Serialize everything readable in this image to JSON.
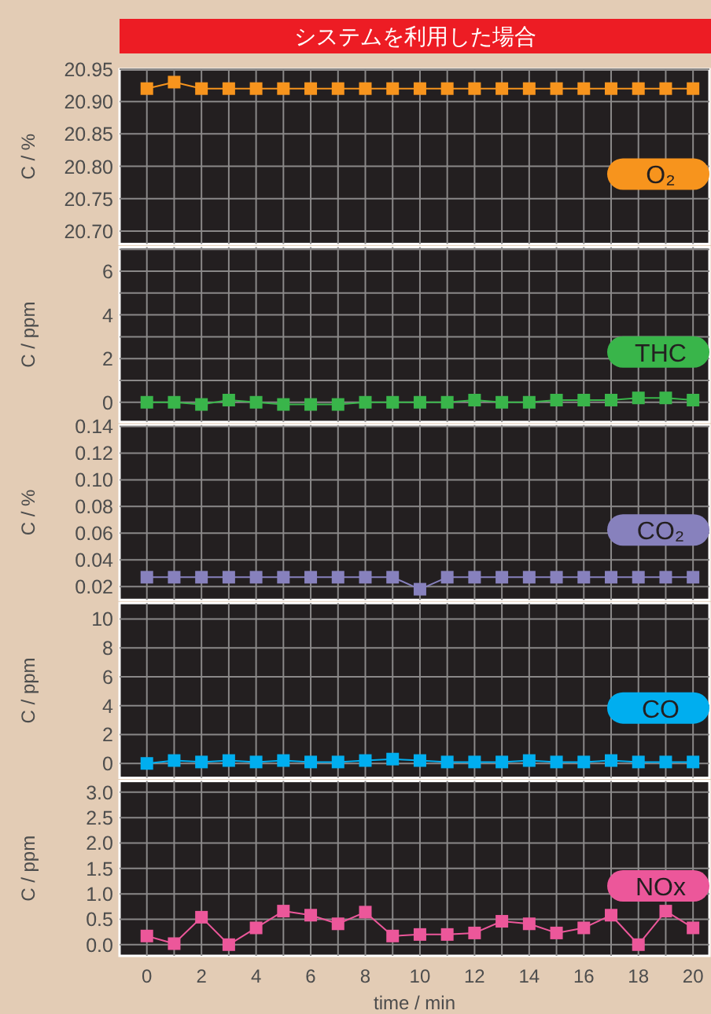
{
  "chart_data": [
    {
      "type": "line",
      "title": "システムを利用した場合",
      "ylabel": "C / %",
      "tick_labels": "y",
      "grid": true,
      "marker": "square",
      "line_style": "solid",
      "x": [
        0,
        1,
        2,
        3,
        4,
        5,
        6,
        7,
        8,
        9,
        10,
        11,
        12,
        13,
        14,
        15,
        16,
        17,
        18,
        19,
        20
      ],
      "xlim": [
        -1,
        20.6
      ],
      "xticks": [
        0,
        {
          "value": 1,
          "label": null
        },
        2,
        {
          "value": 3,
          "label": null
        },
        4,
        {
          "value": 5,
          "label": null
        },
        6,
        {
          "value": 7,
          "label": null
        },
        8,
        {
          "value": 9,
          "label": null
        },
        10,
        {
          "value": 11,
          "label": null
        },
        12,
        {
          "value": 13,
          "label": null
        },
        14,
        {
          "value": 15,
          "label": null
        },
        16,
        {
          "value": 17,
          "label": null
        },
        18,
        {
          "value": 19,
          "label": null
        },
        20
      ],
      "ylim": [
        20.68,
        20.95
      ],
      "yticks": [
        {
          "value": 20.7,
          "label": "20.70"
        },
        20.75,
        {
          "value": 20.8,
          "label": "20.80"
        },
        20.85,
        {
          "value": 20.9,
          "label": "20.90"
        },
        20.95
      ],
      "series": [
        {
          "name": "O₂",
          "color": "#f7941d",
          "values": [
            20.92,
            20.93,
            20.92,
            20.92,
            20.92,
            20.92,
            20.92,
            20.92,
            20.92,
            20.92,
            20.92,
            20.92,
            20.92,
            20.92,
            20.92,
            20.92,
            20.92,
            20.92,
            20.92,
            20.92,
            20.92
          ]
        }
      ]
    },
    {
      "type": "line",
      "ylabel": "C / ppm",
      "tick_labels": "y",
      "grid": true,
      "marker": "square",
      "line_style": "solid",
      "x": [
        0,
        1,
        2,
        3,
        4,
        5,
        6,
        7,
        8,
        9,
        10,
        11,
        12,
        13,
        14,
        15,
        16,
        17,
        18,
        19,
        20
      ],
      "xlim": [
        -1,
        20.6
      ],
      "xticks": [
        0,
        {
          "value": 1,
          "label": null
        },
        2,
        {
          "value": 3,
          "label": null
        },
        4,
        {
          "value": 5,
          "label": null
        },
        6,
        {
          "value": 7,
          "label": null
        },
        8,
        {
          "value": 9,
          "label": null
        },
        10,
        {
          "value": 11,
          "label": null
        },
        12,
        {
          "value": 13,
          "label": null
        },
        14,
        {
          "value": 15,
          "label": null
        },
        16,
        {
          "value": 17,
          "label": null
        },
        18,
        {
          "value": 19,
          "label": null
        },
        20
      ],
      "ylim": [
        -0.9,
        7.1
      ],
      "yticks": [
        0,
        {
          "value": 1,
          "label": null
        },
        2,
        {
          "value": 3,
          "label": null
        },
        4,
        {
          "value": 5,
          "label": null
        },
        6,
        {
          "value": 7,
          "label": null
        }
      ],
      "series": [
        {
          "name": "THC",
          "color": "#39b54a",
          "values": [
            0,
            0,
            -0.1,
            0.1,
            0,
            -0.1,
            -0.1,
            -0.1,
            0,
            0,
            0,
            0,
            0.1,
            0,
            0,
            0.1,
            0.1,
            0.1,
            0.2,
            0.2,
            0.1
          ]
        }
      ]
    },
    {
      "type": "line",
      "ylabel": "C / %",
      "tick_labels": "y",
      "grid": true,
      "marker": "square",
      "line_style": "solid",
      "x": [
        0,
        1,
        2,
        3,
        4,
        5,
        6,
        7,
        8,
        9,
        10,
        11,
        12,
        13,
        14,
        15,
        16,
        17,
        18,
        19,
        20
      ],
      "xlim": [
        -1,
        20.6
      ],
      "xticks": [
        0,
        {
          "value": 1,
          "label": null
        },
        2,
        {
          "value": 3,
          "label": null
        },
        4,
        {
          "value": 5,
          "label": null
        },
        6,
        {
          "value": 7,
          "label": null
        },
        8,
        {
          "value": 9,
          "label": null
        },
        10,
        {
          "value": 11,
          "label": null
        },
        12,
        {
          "value": 13,
          "label": null
        },
        14,
        {
          "value": 15,
          "label": null
        },
        16,
        {
          "value": 17,
          "label": null
        },
        18,
        {
          "value": 19,
          "label": null
        },
        20
      ],
      "ylim": [
        0.01,
        0.141
      ],
      "yticks": [
        0.02,
        0.04,
        0.06,
        0.08,
        {
          "value": 0.1,
          "label": "0.10"
        },
        0.12,
        0.14
      ],
      "series": [
        {
          "name": "CO₂",
          "color": "#8781bd",
          "values": [
            0.027,
            0.027,
            0.027,
            0.027,
            0.027,
            0.027,
            0.027,
            0.027,
            0.027,
            0.027,
            0.018,
            0.027,
            0.027,
            0.027,
            0.027,
            0.027,
            0.027,
            0.027,
            0.027,
            0.027,
            0.027
          ]
        }
      ]
    },
    {
      "type": "line",
      "ylabel": "C / ppm",
      "tick_labels": "y",
      "grid": true,
      "marker": "square",
      "line_style": "solid",
      "x": [
        0,
        1,
        2,
        3,
        4,
        5,
        6,
        7,
        8,
        9,
        10,
        11,
        12,
        13,
        14,
        15,
        16,
        17,
        18,
        19,
        20
      ],
      "xlim": [
        -1,
        20.6
      ],
      "xticks": [
        0,
        {
          "value": 1,
          "label": null
        },
        2,
        {
          "value": 3,
          "label": null
        },
        4,
        {
          "value": 5,
          "label": null
        },
        6,
        {
          "value": 7,
          "label": null
        },
        8,
        {
          "value": 9,
          "label": null
        },
        10,
        {
          "value": 11,
          "label": null
        },
        12,
        {
          "value": 13,
          "label": null
        },
        14,
        {
          "value": 15,
          "label": null
        },
        16,
        {
          "value": 17,
          "label": null
        },
        18,
        {
          "value": 19,
          "label": null
        },
        20
      ],
      "ylim": [
        -1,
        11.1
      ],
      "yticks": [
        0,
        2,
        4,
        6,
        8,
        10
      ],
      "series": [
        {
          "name": "CO",
          "color": "#00aeef",
          "values": [
            0,
            0.2,
            0.1,
            0.2,
            0.1,
            0.2,
            0.1,
            0.1,
            0.2,
            0.3,
            0.2,
            0.1,
            0.1,
            0.1,
            0.2,
            0.1,
            0.1,
            0.2,
            0.1,
            0.1,
            0.1
          ]
        }
      ]
    },
    {
      "type": "line",
      "ylabel": "C / ppm",
      "xlabel": "time / min",
      "grid": true,
      "marker": "square",
      "line_style": "solid",
      "x": [
        0,
        1,
        2,
        3,
        4,
        5,
        6,
        7,
        8,
        9,
        10,
        11,
        12,
        13,
        14,
        15,
        16,
        17,
        18,
        19,
        20
      ],
      "xlim": [
        -1,
        20.6
      ],
      "xticks": [
        0,
        {
          "value": 1,
          "label": null
        },
        2,
        {
          "value": 3,
          "label": null
        },
        4,
        {
          "value": 5,
          "label": null
        },
        6,
        {
          "value": 7,
          "label": null
        },
        8,
        {
          "value": 9,
          "label": null
        },
        10,
        {
          "value": 11,
          "label": null
        },
        12,
        {
          "value": 13,
          "label": null
        },
        14,
        {
          "value": 15,
          "label": null
        },
        16,
        {
          "value": 17,
          "label": null
        },
        18,
        {
          "value": 19,
          "label": null
        },
        20
      ],
      "ylim": [
        -0.22,
        3.22
      ],
      "yticks": [
        {
          "value": 0,
          "label": "0.0"
        },
        0.5,
        {
          "value": 1,
          "label": "1.0"
        },
        1.5,
        {
          "value": 2,
          "label": "2.0"
        },
        2.5,
        {
          "value": 3,
          "label": "3.0"
        }
      ],
      "series": [
        {
          "name": "NOx",
          "color": "#ec579a",
          "values": [
            0.17,
            0.02,
            0.54,
            0,
            0.33,
            0.66,
            0.58,
            0.41,
            0.64,
            0.17,
            0.2,
            0.2,
            0.23,
            0.46,
            0.41,
            0.23,
            0.33,
            0.58,
            0,
            0.66,
            0.33
          ]
        }
      ]
    }
  ]
}
